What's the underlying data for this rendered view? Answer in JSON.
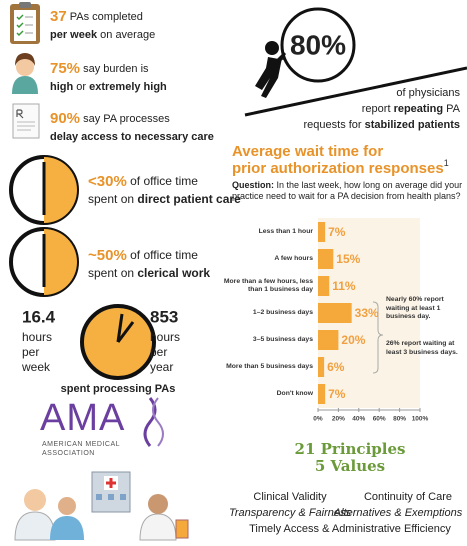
{
  "stats": [
    {
      "lines": [
        [
          {
            "t": "37",
            "num": true
          },
          {
            "t": " PAs completed"
          }
        ],
        [
          {
            "t": "per week",
            "b": true
          },
          {
            "t": " on average"
          }
        ]
      ]
    },
    {
      "lines": [
        [
          {
            "t": "75%",
            "num": true
          },
          {
            "t": " say burden is"
          }
        ],
        [
          {
            "t": "high",
            "b": true
          },
          {
            "t": " or "
          },
          {
            "t": "extremely high",
            "b": true
          }
        ]
      ]
    },
    {
      "lines": [
        [
          {
            "t": "90%",
            "num": true
          },
          {
            "t": " say PA processes"
          }
        ],
        [
          {
            "t": "delay access to necessary care",
            "b": true
          }
        ]
      ]
    },
    {
      "lines": [
        [
          {
            "t": "<30%",
            "num": true
          },
          {
            "t": " of office time"
          }
        ],
        [
          {
            "t": "spent on "
          },
          {
            "t": "direct patient care",
            "b": true
          }
        ]
      ]
    },
    {
      "lines": [
        [
          {
            "t": "~50%",
            "num": true
          },
          {
            "t": " of office time"
          }
        ],
        [
          {
            "t": "spent on "
          },
          {
            "t": "clerical work",
            "b": true
          }
        ]
      ]
    }
  ],
  "hours_block": {
    "left": {
      "value": "16.4",
      "lines": [
        "hours",
        "per",
        "week"
      ]
    },
    "right": {
      "value": "853",
      "lines": [
        "hours",
        "per",
        "year"
      ]
    },
    "caption": "spent processing PAs"
  },
  "callout": {
    "value": "80%",
    "lines": [
      [
        {
          "t": "of physicians"
        }
      ],
      [
        {
          "t": "report "
        },
        {
          "t": "repeating",
          "b": true
        },
        {
          "t": " PA"
        }
      ],
      [
        {
          "t": "requests for "
        },
        {
          "t": "stabilized patients",
          "b": true
        }
      ]
    ]
  },
  "logo": {
    "name": "AMA",
    "lines": [
      "AMERICAN MEDICAL",
      "ASSOCIATION"
    ]
  },
  "principles": {
    "title": "21 Principles",
    "subtitle": "5 Values",
    "values": [
      "Clinical Validity",
      "Continuity of Care",
      "Transparency & Fairness",
      "Alternatives & Exemptions",
      "Timely Access & Administrative Efficiency"
    ]
  },
  "chart_data": {
    "type": "hbar",
    "title": [
      "Average wait time for",
      "prior authorization responses"
    ],
    "title_note": "1",
    "question_label": "Question:",
    "question": "In the last week, how long on average did your practice need to wait for a PA decision from health plans?",
    "categories": [
      "Less than 1 hour",
      "A few hours",
      "More than a few hours, less than 1 business day",
      "1–2 business days",
      "3–5 business days",
      "More than 5 business days",
      "Don't know"
    ],
    "values": [
      7,
      15,
      11,
      33,
      20,
      6,
      7
    ],
    "value_labels": [
      "7%",
      "15%",
      "11%",
      "33%",
      "20%",
      "6%",
      "7%"
    ],
    "color": "#f5a93a",
    "xlim": [
      0,
      100
    ],
    "xticks": [
      {
        "value": 0,
        "label": "0%"
      },
      {
        "value": 20,
        "label": "20%"
      },
      {
        "value": 40,
        "label": "40%"
      },
      {
        "value": 60,
        "label": "60%"
      },
      {
        "value": 80,
        "label": "80%"
      },
      {
        "value": 100,
        "label": "100%"
      }
    ],
    "annotations": [
      "Nearly 60% report waiting at least 1 business day.",
      "26% report waiting at least 3 business days."
    ]
  }
}
